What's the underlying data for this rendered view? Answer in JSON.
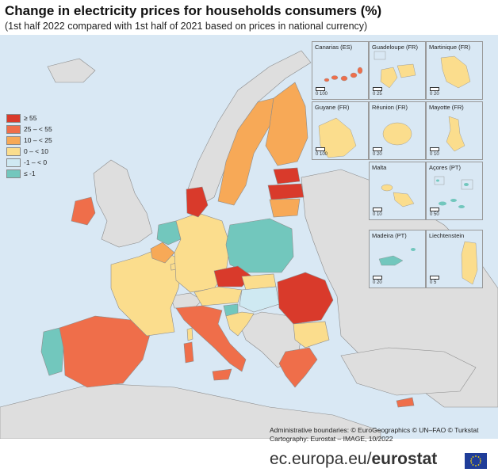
{
  "title": "Change in electricity prices for households consumers (%)",
  "subtitle": "(1st half 2022 compared with 1st half of 2021 based on prices in national currency)",
  "colors": {
    "sea": "#d9e8f4",
    "no_data": "#dedede",
    "border": "#8c8c8c",
    "class_ge55": "#d93a2b",
    "class_25_55": "#ef6e4a",
    "class_10_25": "#f7a957",
    "class_0_10": "#fbdd8d",
    "class_m1_0": "#cfe9f2",
    "class_le_m1": "#72c7bd",
    "eu_flag": "#1f3d99",
    "eu_stars": "#ffdd00"
  },
  "legend": [
    {
      "label": "≥ 55",
      "color": "#d93a2b"
    },
    {
      "label": "25 – < 55",
      "color": "#ef6e4a"
    },
    {
      "label": "10 – < 25",
      "color": "#f7a957"
    },
    {
      "label": "0 – < 10",
      "color": "#fbdd8d"
    },
    {
      "label": "-1 – < 0",
      "color": "#cfe9f2"
    },
    {
      "label": "≤ -1",
      "color": "#72c7bd"
    }
  ],
  "insets": [
    {
      "label": "Canarias (ES)",
      "scale": "0   100"
    },
    {
      "label": "Guadeloupe (FR)",
      "scale": "0   25"
    },
    {
      "label": "Martinique (FR)",
      "scale": "0   20"
    },
    {
      "label": "Guyane (FR)",
      "scale": "0   100"
    },
    {
      "label": "Réunion (FR)",
      "scale": "0   20"
    },
    {
      "label": "Mayotte (FR)",
      "scale": "0   10"
    },
    {
      "label": "Malta",
      "scale": "0   10"
    },
    {
      "label": "Açores (PT)",
      "scale": "0   50"
    },
    {
      "label": "Madeira (PT)",
      "scale": "0   20"
    },
    {
      "label": "Liechtenstein",
      "scale": "0   5"
    }
  ],
  "credits": {
    "line1": "Administrative boundaries: © EuroGeographics © UN–FAO © Turkstat",
    "line2": "Cartography: Eurostat – IMAGE, 10/2022"
  },
  "footer": {
    "prefix": "ec.europa.eu/",
    "brand": "eurostat"
  }
}
